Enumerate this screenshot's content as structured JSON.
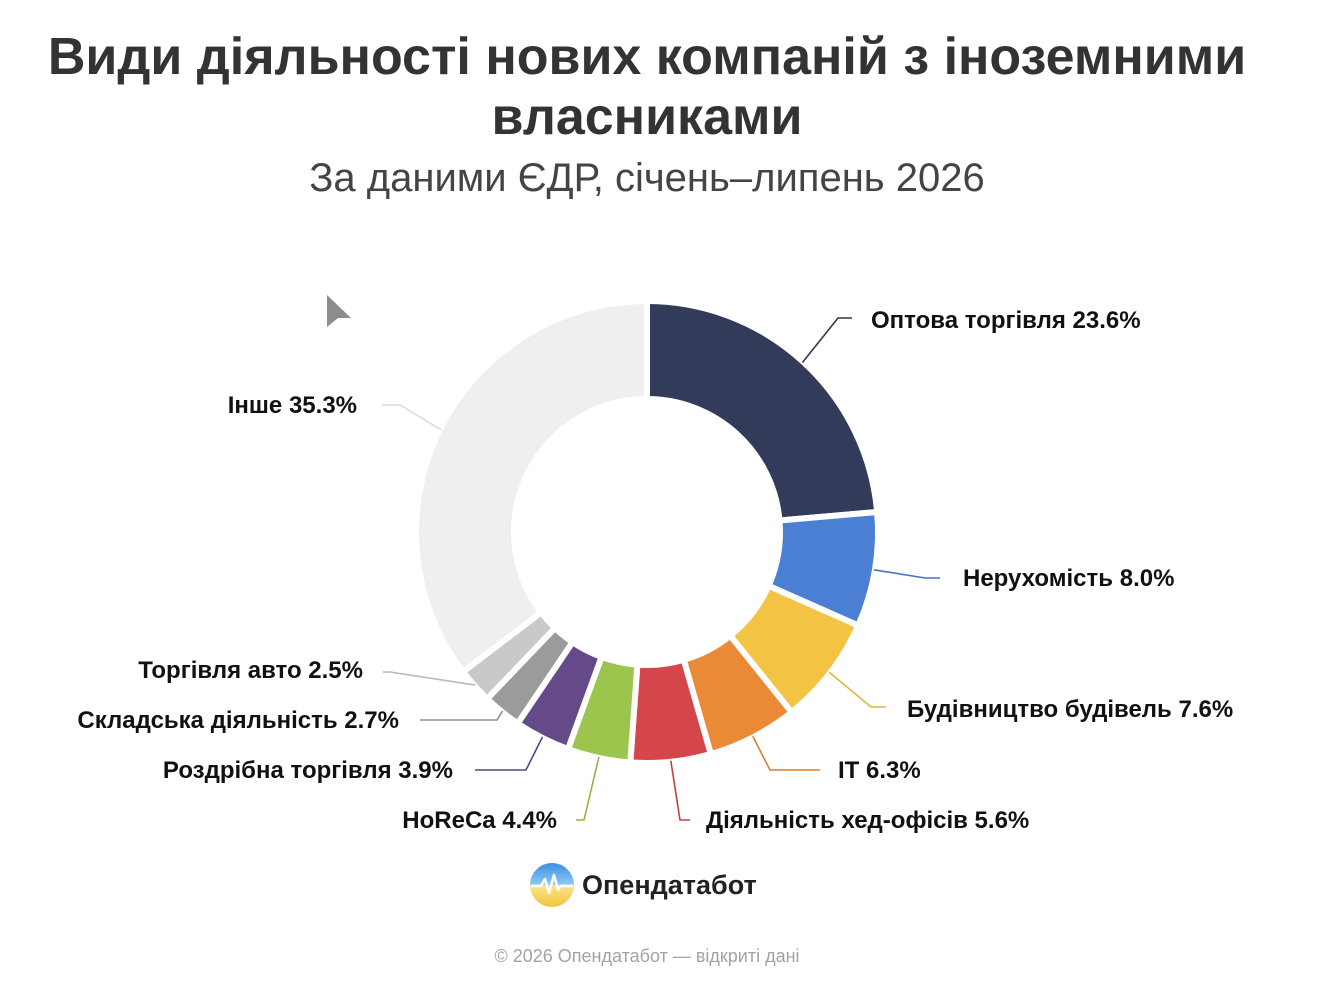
{
  "chart_data": {
    "type": "pie",
    "donut": true,
    "title": "Види діяльності нових компаній з іноземними власниками",
    "subtitle": "За даними ЄДР, січень–липень 2026",
    "unit": "%",
    "categories": [
      "Оптова торгівля",
      "Нерухомість",
      "Будівництво будівель",
      "IT",
      "Діяльність хед-офісів",
      "HoReCa",
      "Роздрібна торгівля",
      "Складська діяльність",
      "Торгівля авто",
      "Інше"
    ],
    "values": [
      23.6,
      8.0,
      7.6,
      6.3,
      5.6,
      4.4,
      3.9,
      2.7,
      2.5,
      35.3
    ],
    "colors": [
      "#323c5a",
      "#4a7fd4",
      "#f3c444",
      "#ea8a36",
      "#d5464a",
      "#9cc54d",
      "#654a89",
      "#9b9b9b",
      "#c9c9c9",
      "#efefef"
    ]
  },
  "logo": {
    "text": "Опендатабот",
    "icon": "opendatabot-logo-icon"
  },
  "footer": "© 2026 Опендатабот — відкриті дані",
  "cursor": {
    "icon": "cursor-arrow-icon"
  }
}
